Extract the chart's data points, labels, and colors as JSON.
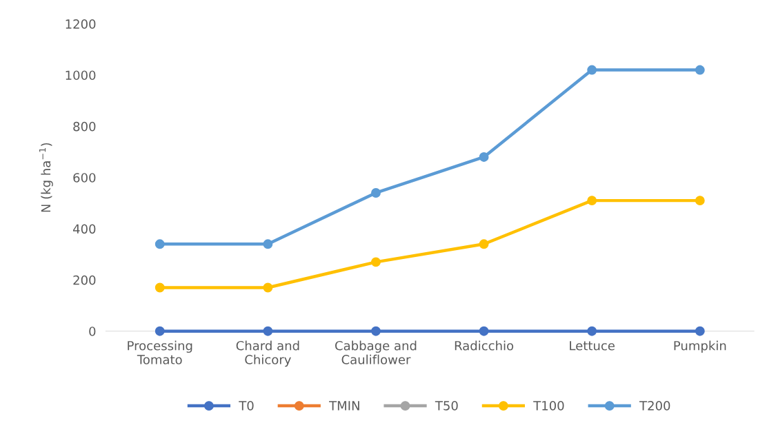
{
  "chart_data": {
    "type": "line",
    "ylabel": "N (kg ha$^{−1}$)",
    "categories": [
      "Processing Tomato",
      "Chard and Chicory",
      "Cabbage and Cauliflower",
      "Radicchio",
      "Lettuce",
      "Pumpkin"
    ],
    "series": [
      {
        "name": "T0",
        "color": "#4472c4",
        "values": [
          0,
          0,
          0,
          0,
          0,
          0
        ]
      },
      {
        "name": "TMIN",
        "color": "#ed7d31",
        "values": [
          null,
          null,
          null,
          null,
          null,
          null
        ]
      },
      {
        "name": "T50",
        "color": "#a5a5a5",
        "values": [
          null,
          null,
          null,
          null,
          null,
          null
        ]
      },
      {
        "name": "T100",
        "color": "#ffc000",
        "values": [
          170,
          170,
          270,
          340,
          510,
          510
        ]
      },
      {
        "name": "T200",
        "color": "#5b9bd5",
        "values": [
          340,
          340,
          540,
          680,
          1020,
          1020
        ]
      }
    ],
    "ylim": [
      0,
      1200
    ],
    "yticks": [
      0,
      200,
      400,
      600,
      800,
      1000,
      1200
    ],
    "grid": false,
    "legend": "bottom",
    "marker": "circle",
    "line_style": "solid"
  }
}
